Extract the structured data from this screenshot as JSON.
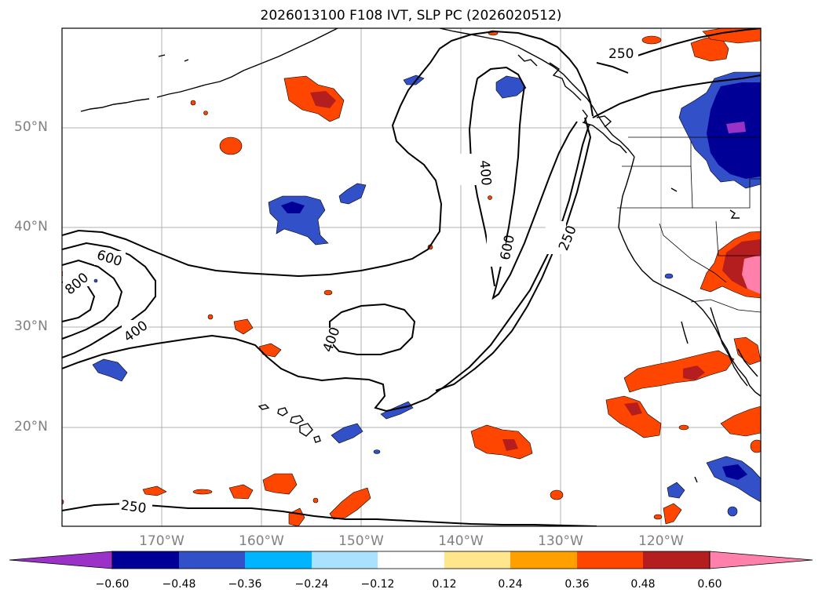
{
  "title": "2026013100 F108 IVT, SLP PC (2026020512)",
  "map": {
    "lat_labels": [
      "50°N",
      "40°N",
      "30°N",
      "20°N"
    ],
    "lon_labels": [
      "170°W",
      "160°W",
      "150°W",
      "140°W",
      "130°W",
      "120°W"
    ],
    "contour_labels": [
      "250",
      "600",
      "800",
      "400",
      "400",
      "400",
      "600",
      "250",
      "250"
    ]
  },
  "colorbar": {
    "tick_labels": [
      "−0.60",
      "−0.48",
      "−0.36",
      "−0.24",
      "−0.12",
      "0.12",
      "0.24",
      "0.36",
      "0.48",
      "0.60"
    ],
    "colors": [
      "#9b32c8",
      "#000096",
      "#3250c8",
      "#00b4ff",
      "#aae1ff",
      "#ffffff",
      "#ffe68c",
      "#ffa000",
      "#ff4600",
      "#b41e1e",
      "#ff80aa"
    ]
  }
}
